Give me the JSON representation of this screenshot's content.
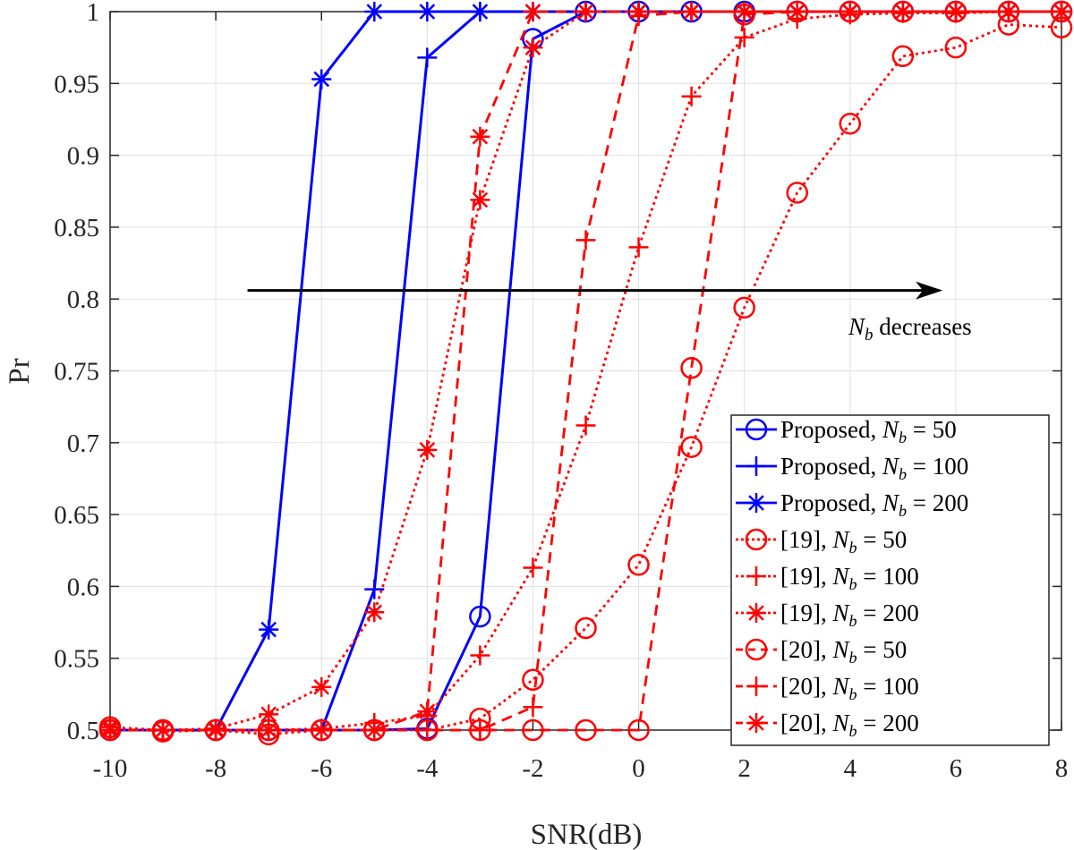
{
  "chart_data": {
    "type": "line",
    "title": "",
    "xlabel": "SNR(dB)",
    "ylabel": "Pr",
    "xlim": [
      -10,
      8
    ],
    "ylim": [
      0.5,
      1
    ],
    "grid": true,
    "legend_placement": "bottom-right",
    "xticks": [
      -10,
      -8,
      -6,
      -4,
      -2,
      0,
      2,
      4,
      6,
      8
    ],
    "xtick_labels": [
      "-10",
      "-8",
      "-6",
      "-4",
      "-2",
      "0",
      "2",
      "4",
      "6",
      "8"
    ],
    "yticks": [
      0.5,
      0.55,
      0.6,
      0.65,
      0.7,
      0.75,
      0.8,
      0.85,
      0.9,
      0.95,
      1
    ],
    "ytick_labels": [
      "0.5",
      "0.55",
      "0.6",
      "0.65",
      "0.7",
      "0.75",
      "0.8",
      "0.85",
      "0.9",
      "0.95",
      "1"
    ],
    "x": [
      -10,
      -9,
      -8,
      -7,
      -6,
      -5,
      -4,
      -3,
      -2,
      -1,
      0,
      1,
      2,
      3,
      4,
      5,
      6,
      7,
      8
    ],
    "annotation": {
      "text_main": "N",
      "text_sub": "b",
      "text_rest": " decreases"
    },
    "series": [
      {
        "name": "Proposed, Nb = 50",
        "color": "#0000ff",
        "marker": "circle",
        "line": "solid",
        "values": [
          0.5,
          0.5,
          0.5,
          0.5,
          0.5,
          0.5,
          0.501,
          0.579,
          0.981,
          1,
          1,
          1,
          1,
          1,
          1,
          1,
          1,
          1,
          1
        ]
      },
      {
        "name": "Proposed, Nb = 100",
        "color": "#0000ff",
        "marker": "plus",
        "line": "solid",
        "values": [
          0.5,
          0.5,
          0.5,
          0.5,
          0.5,
          0.598,
          0.968,
          1,
          1,
          1,
          1,
          1,
          1,
          1,
          1,
          1,
          1,
          1,
          1
        ]
      },
      {
        "name": "Proposed, Nb = 200",
        "color": "#0000ff",
        "marker": "asterisk",
        "line": "solid",
        "values": [
          0.5,
          0.5,
          0.5,
          0.57,
          0.953,
          1,
          1,
          1,
          1,
          1,
          1,
          1,
          1,
          1,
          1,
          1,
          1,
          1,
          1
        ]
      },
      {
        "name": "[19], Nb = 50",
        "color": "#ff0000",
        "marker": "circle",
        "line": "dotted",
        "values": [
          0.502,
          0.499,
          0.5,
          0.497,
          0.5,
          0.5,
          0.5,
          0.508,
          0.535,
          0.571,
          0.615,
          0.697,
          0.794,
          0.874,
          0.922,
          0.969,
          0.975,
          0.991,
          0.989
        ]
      },
      {
        "name": "[19], Nb = 100",
        "color": "#ff0000",
        "marker": "plus",
        "line": "dotted",
        "values": [
          0.5,
          0.5,
          0.5,
          0.5,
          0.501,
          0.505,
          0.51,
          0.552,
          0.613,
          0.712,
          0.836,
          0.941,
          0.982,
          0.995,
          0.998,
          0.999,
          0.999,
          1,
          1
        ]
      },
      {
        "name": "[19], Nb = 200",
        "color": "#ff0000",
        "marker": "asterisk",
        "line": "dotted",
        "values": [
          0.502,
          0.5,
          0.501,
          0.511,
          0.53,
          0.582,
          0.695,
          0.869,
          0.975,
          1,
          1,
          1,
          1,
          1,
          1,
          1,
          1,
          1,
          1
        ]
      },
      {
        "name": "[20], Nb = 50",
        "color": "#ff0000",
        "marker": "circle",
        "line": "dashed",
        "values": [
          0.5,
          0.5,
          0.5,
          0.5,
          0.5,
          0.5,
          0.5,
          0.5,
          0.5,
          0.5,
          0.5,
          0.752,
          0.998,
          1,
          1,
          1,
          1,
          1,
          1
        ]
      },
      {
        "name": "[20], Nb = 100",
        "color": "#ff0000",
        "marker": "plus",
        "line": "dashed",
        "values": [
          0.5,
          0.5,
          0.5,
          0.5,
          0.5,
          0.5,
          0.5,
          0.5,
          0.516,
          0.841,
          0.997,
          1,
          1,
          1,
          1,
          1,
          1,
          1,
          1
        ]
      },
      {
        "name": "[20], Nb = 200",
        "color": "#ff0000",
        "marker": "asterisk",
        "line": "dashed",
        "values": [
          0.5,
          0.5,
          0.5,
          0.5,
          0.5,
          0.5,
          0.513,
          0.913,
          1,
          1,
          1,
          1,
          1,
          1,
          1,
          1,
          1,
          1,
          1
        ]
      }
    ]
  }
}
